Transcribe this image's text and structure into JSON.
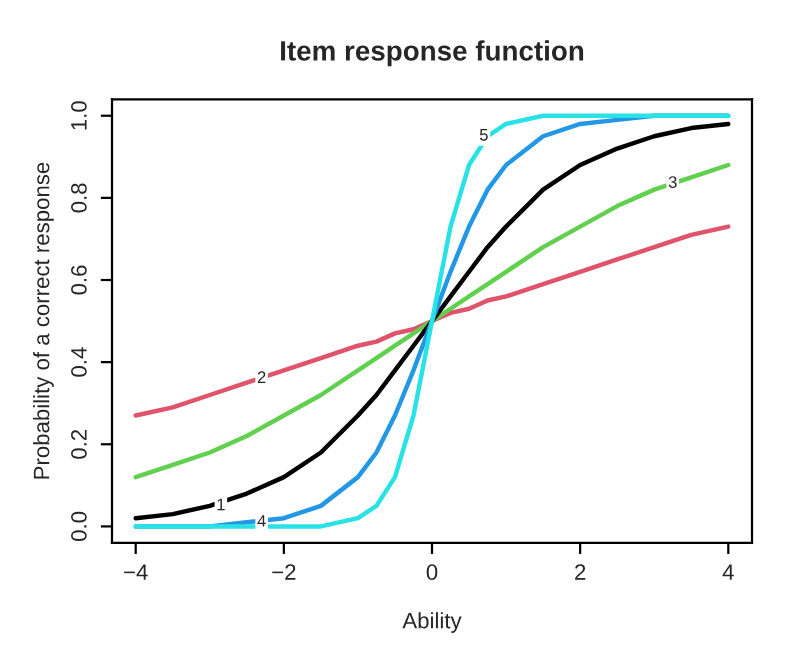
{
  "chart_data": {
    "type": "line",
    "title": "Item response function",
    "xlabel": "Ability",
    "ylabel": "Probability of a correct response",
    "x": [
      -4,
      -3.5,
      -3,
      -2.5,
      -2,
      -1.5,
      -1,
      -0.75,
      -0.5,
      -0.25,
      0,
      0.25,
      0.5,
      0.75,
      1,
      1.5,
      2,
      2.5,
      3,
      3.5,
      4
    ],
    "series": [
      {
        "color": "#df536b",
        "values": [
          0.27,
          0.29,
          0.32,
          0.35,
          0.38,
          0.41,
          0.44,
          0.45,
          0.47,
          0.48,
          0.5,
          0.52,
          0.53,
          0.55,
          0.56,
          0.59,
          0.62,
          0.65,
          0.68,
          0.71,
          0.73
        ]
      },
      {
        "color": "#61d04f",
        "values": [
          0.12,
          0.15,
          0.18,
          0.22,
          0.27,
          0.32,
          0.38,
          0.41,
          0.44,
          0.47,
          0.5,
          0.53,
          0.56,
          0.59,
          0.62,
          0.68,
          0.73,
          0.78,
          0.82,
          0.85,
          0.88
        ]
      },
      {
        "color": "#000000",
        "values": [
          0.02,
          0.03,
          0.05,
          0.08,
          0.12,
          0.18,
          0.27,
          0.32,
          0.38,
          0.44,
          0.5,
          0.56,
          0.62,
          0.68,
          0.73,
          0.82,
          0.88,
          0.92,
          0.95,
          0.97,
          0.98
        ]
      },
      {
        "color": "#2297e6",
        "values": [
          0.0,
          0.0,
          0.0,
          0.01,
          0.02,
          0.05,
          0.12,
          0.18,
          0.27,
          0.38,
          0.5,
          0.62,
          0.73,
          0.82,
          0.88,
          0.95,
          0.98,
          0.99,
          1.0,
          1.0,
          1.0
        ]
      },
      {
        "color": "#28e2e5",
        "values": [
          0.0,
          0.0,
          0.0,
          0.0,
          0.0,
          0.0,
          0.02,
          0.05,
          0.12,
          0.27,
          0.5,
          0.73,
          0.88,
          0.95,
          0.98,
          1.0,
          1.0,
          1.0,
          1.0,
          1.0,
          1.0
        ]
      }
    ],
    "annotations": [
      {
        "text": "1",
        "x": -2.85,
        "y": 0.05
      },
      {
        "text": "2",
        "x": -2.3,
        "y": 0.36
      },
      {
        "text": "3",
        "x": 3.25,
        "y": 0.835
      },
      {
        "text": "4",
        "x": -2.3,
        "y": 0.01
      },
      {
        "text": "5",
        "x": 0.7,
        "y": 0.95
      }
    ],
    "xlim": [
      -4.32,
      4.32
    ],
    "ylim": [
      -0.04,
      1.04
    ],
    "xticks": [
      {
        "value": -4,
        "label": "−4"
      },
      {
        "value": -2,
        "label": "−2"
      },
      0,
      2,
      4
    ],
    "yticks": [
      {
        "value": 0,
        "label": "0.0"
      },
      0.2,
      0.4,
      0.6,
      0.8,
      {
        "value": 1,
        "label": "1.0"
      }
    ],
    "grid": false,
    "legend": false
  }
}
